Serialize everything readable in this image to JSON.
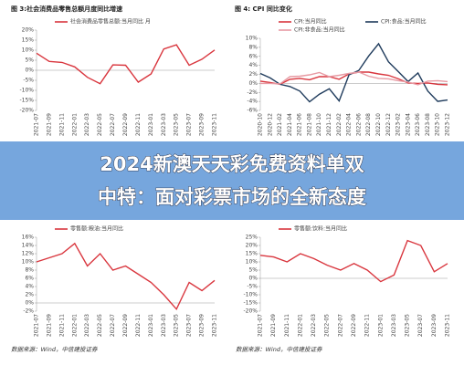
{
  "chart_data": [
    {
      "type": "line",
      "title": "图 3:社会消费品零售总额月度同比增速",
      "categories": [
        "2021-07",
        "2021-09",
        "2021-11",
        "2022-01",
        "2022-03",
        "2022-05",
        "2022-07",
        "2022-09",
        "2022-11",
        "2023-01",
        "2023-03",
        "2023-05",
        "2023-07",
        "2023-09",
        "2023-11"
      ],
      "series": [
        {
          "name": "社会消费品零售总额:当月同比 月",
          "color": "#d9363e",
          "values": [
            8.5,
            4.4,
            3.9,
            1.7,
            -3.5,
            -6.7,
            2.7,
            2.5,
            -5.9,
            -1.8,
            10.6,
            12.7,
            2.5,
            5.5,
            10.1
          ]
        }
      ],
      "ylim": [
        -20,
        20
      ],
      "yticks": [
        {
          "value": -20,
          "label": "-20%"
        },
        {
          "value": -15,
          "label": "-15%"
        },
        {
          "value": -10,
          "label": "-10%"
        },
        {
          "value": -5,
          "label": "-5%"
        },
        {
          "value": 0,
          "label": "0%"
        },
        {
          "value": 5,
          "label": "5%"
        },
        {
          "value": 10,
          "label": "10%"
        },
        {
          "value": 15,
          "label": "15%"
        },
        {
          "value": 20,
          "label": "20%"
        }
      ]
    },
    {
      "type": "line",
      "title": "图 4: CPI 同比变化",
      "categories": [
        "2020-10",
        "2020-12",
        "2021-02",
        "2021-04",
        "2021-06",
        "2021-08",
        "2021-10",
        "2021-12",
        "2022-02",
        "2022-04",
        "2022-06",
        "2022-08",
        "2022-10",
        "2022-12",
        "2023-02",
        "2023-04",
        "2023-06",
        "2023-08",
        "2023-10",
        "2023-12"
      ],
      "series": [
        {
          "name": "CPI:当月同比",
          "color": "#d9363e",
          "values": [
            0.5,
            0.2,
            -0.2,
            0.9,
            1.1,
            0.8,
            1.5,
            1.5,
            0.9,
            2.1,
            2.5,
            2.5,
            2.1,
            1.8,
            1.0,
            0.1,
            0.0,
            0.1,
            -0.2,
            -0.3
          ]
        },
        {
          "name": "CPI:食品:当月同比",
          "color": "#1f3b5c",
          "values": [
            2.2,
            1.2,
            -0.2,
            -0.7,
            -1.7,
            -4.1,
            -2.4,
            -1.2,
            -3.9,
            1.9,
            2.9,
            6.1,
            8.8,
            4.8,
            2.6,
            0.4,
            2.3,
            -1.7,
            -4.0,
            -3.7
          ]
        },
        {
          "name": "CPI:非食品:当月同比",
          "color": "#e79aa3",
          "values": [
            0.0,
            0.0,
            -0.1,
            1.5,
            1.6,
            1.9,
            2.4,
            1.5,
            1.8,
            2.2,
            2.5,
            1.6,
            1.1,
            1.0,
            0.6,
            0.3,
            -0.3,
            0.5,
            0.6,
            0.4
          ]
        }
      ],
      "ylim": [
        -6,
        10
      ],
      "yticks": [
        {
          "value": -6,
          "label": "-6%"
        },
        {
          "value": -4,
          "label": "-4%"
        },
        {
          "value": -2,
          "label": "-2%"
        },
        {
          "value": 0,
          "label": "0%"
        },
        {
          "value": 2,
          "label": "2%"
        },
        {
          "value": 4,
          "label": "4%"
        },
        {
          "value": 6,
          "label": "6%"
        },
        {
          "value": 8,
          "label": "8%"
        },
        {
          "value": 10,
          "label": "10%"
        }
      ]
    },
    {
      "type": "line",
      "categories": [
        "2021-07",
        "2021-09",
        "2021-11",
        "2022-01",
        "2022-03",
        "2022-05",
        "2022-07",
        "2022-09",
        "2022-11",
        "2023-01",
        "2023-03",
        "2023-05",
        "2023-07",
        "2023-09",
        "2023-11"
      ],
      "series": [
        {
          "name": "零售额:粮油:当月同比",
          "color": "#d9363e",
          "values": [
            10,
            11,
            12,
            14.5,
            9,
            12,
            8,
            9,
            7,
            5,
            2,
            -1.5,
            5,
            3,
            5.5
          ]
        }
      ],
      "ylim": [
        -2,
        16
      ],
      "yticks": [
        {
          "value": -2,
          "label": "-2%"
        },
        {
          "value": 0,
          "label": "0%"
        },
        {
          "value": 2,
          "label": "2%"
        },
        {
          "value": 4,
          "label": "4%"
        },
        {
          "value": 6,
          "label": "6%"
        },
        {
          "value": 8,
          "label": "8%"
        },
        {
          "value": 10,
          "label": "10%"
        },
        {
          "value": 12,
          "label": "12%"
        },
        {
          "value": 14,
          "label": "14%"
        },
        {
          "value": 16,
          "label": "16%"
        }
      ]
    },
    {
      "type": "line",
      "categories": [
        "2021-07",
        "2021-09",
        "2021-11",
        "2022-01",
        "2022-03",
        "2022-05",
        "2022-07",
        "2022-09",
        "2022-11",
        "2023-01",
        "2023-03",
        "2023-05",
        "2023-07",
        "2023-09",
        "2023-11"
      ],
      "series": [
        {
          "name": "零售额:饮料:当月同比",
          "color": "#d9363e",
          "values": [
            14,
            13,
            10,
            15,
            12,
            8,
            5,
            9,
            5,
            -2,
            2,
            23,
            20,
            4,
            9
          ]
        }
      ],
      "ylim": [
        -20,
        25
      ],
      "yticks": [
        {
          "value": -20,
          "label": "-20%"
        },
        {
          "value": -15,
          "label": "-15%"
        },
        {
          "value": -10,
          "label": "-10%"
        },
        {
          "value": -5,
          "label": "-5%"
        },
        {
          "value": 0,
          "label": "0%"
        },
        {
          "value": 5,
          "label": "5%"
        },
        {
          "value": 10,
          "label": "10%"
        },
        {
          "value": 15,
          "label": "15%"
        },
        {
          "value": 20,
          "label": "20%"
        },
        {
          "value": 25,
          "label": "25%"
        }
      ]
    }
  ],
  "banner": {
    "line1": "2024新澳天天彩免费资料单双",
    "line2": "中特：面对彩票市场的全新态度"
  },
  "sources": [
    "数据来源：Wind，中信建投证券",
    "数据来源：Wind，中信建投证券"
  ]
}
